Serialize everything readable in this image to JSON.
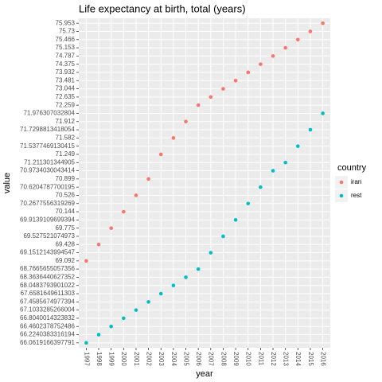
{
  "chart_data": {
    "type": "scatter",
    "title": "Life expectancy at birth, total (years)",
    "x_label": "year",
    "y_label": "value",
    "legend_title": "country",
    "categories": [
      "1997",
      "1998",
      "1999",
      "2000",
      "2001",
      "2002",
      "2003",
      "2004",
      "2005",
      "2006",
      "2007",
      "2008",
      "2009",
      "2010",
      "2011",
      "2012",
      "2013",
      "2014",
      "2015",
      "2016"
    ],
    "y_discrete": true,
    "yticks": [
      66.0619166397791,
      66.2240383316194,
      66.4602378752486,
      66.8040014323832,
      67.1033285266004,
      67.4585674977394,
      67.6581649611303,
      68.0483793901022,
      68.3636440627352,
      68.7665655057356,
      69.092,
      69.1512143994547,
      69.428,
      69.527521074973,
      69.775,
      69.9139109699394,
      70.144,
      70.2677556319269,
      70.526,
      70.6204787700195,
      70.899,
      70.9734030043414,
      71.211301344905,
      71.249,
      71.5377469130415,
      71.582,
      71.7298813418054,
      71.912,
      71.976307032804,
      72.259,
      72.635,
      73.044,
      73.481,
      73.932,
      74.375,
      74.787,
      75.153,
      75.466,
      75.73,
      75.953
    ],
    "series": [
      {
        "name": "iran",
        "color": "#F8766D",
        "values": [
          69.092,
          69.428,
          69.775,
          70.144,
          70.526,
          70.899,
          71.249,
          71.582,
          71.912,
          72.259,
          72.635,
          73.044,
          73.481,
          73.932,
          74.375,
          74.787,
          75.153,
          75.466,
          75.73,
          75.953
        ]
      },
      {
        "name": "rest",
        "color": "#00BFC4",
        "values": [
          66.0619166397791,
          66.2240383316194,
          66.4602378752486,
          66.8040014323832,
          67.1033285266004,
          67.4585674977394,
          67.6581649611303,
          68.0483793901022,
          68.3636440627352,
          68.7665655057356,
          69.1512143994547,
          69.527521074973,
          69.9139109699394,
          70.2677556319269,
          70.6204787700195,
          70.9734030043414,
          71.211301344905,
          71.5377469130415,
          71.7298813418054,
          71.976307032804
        ]
      }
    ],
    "grid": true
  }
}
